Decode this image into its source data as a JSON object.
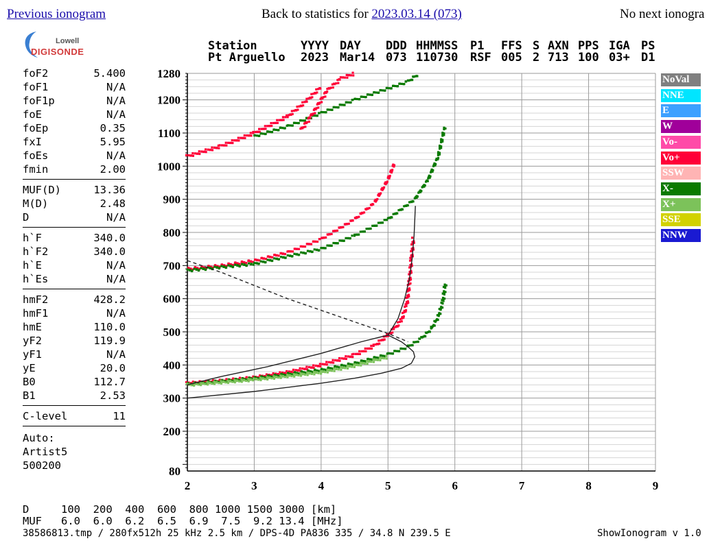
{
  "nav": {
    "prev_label": "Previous ionogram",
    "back_prefix": "Back to statistics for ",
    "back_link": "2023.03.14 (073)",
    "next_label": "No next ionogra"
  },
  "logo": {
    "top": "Lowell",
    "bottom": "DIGISONDE"
  },
  "header": {
    "row1": [
      "Station",
      "YYYY",
      "DAY",
      "DDD",
      "HHMMSS",
      "P1",
      "FFS",
      "S",
      "AXN",
      "PPS",
      "IGA",
      "PS"
    ],
    "row2": [
      "Pt Arguello",
      "2023",
      "Mar14",
      "073",
      "110730",
      "RSF",
      "005",
      "2",
      "713",
      "100",
      "03+",
      "D1"
    ]
  },
  "params": [
    {
      "name": "foF2",
      "value": "5.400"
    },
    {
      "name": "foF1",
      "value": "N/A"
    },
    {
      "name": "foF1p",
      "value": "N/A"
    },
    {
      "name": "foE",
      "value": "N/A"
    },
    {
      "name": "foEp",
      "value": "0.35"
    },
    {
      "name": "fxI",
      "value": "5.95"
    },
    {
      "name": "foEs",
      "value": "N/A"
    },
    {
      "name": "fmin",
      "value": "2.00"
    },
    {
      "name": "MUF(D)",
      "value": "13.36"
    },
    {
      "name": "M(D)",
      "value": "2.48"
    },
    {
      "name": "D",
      "value": "N/A"
    },
    {
      "name": "h`F",
      "value": "340.0"
    },
    {
      "name": "h`F2",
      "value": "340.0"
    },
    {
      "name": "h`E",
      "value": "N/A"
    },
    {
      "name": "h`Es",
      "value": "N/A"
    },
    {
      "name": "hmF2",
      "value": "428.2"
    },
    {
      "name": "hmF1",
      "value": "N/A"
    },
    {
      "name": "hmE",
      "value": "110.0"
    },
    {
      "name": "yF2",
      "value": "119.9"
    },
    {
      "name": "yF1",
      "value": "N/A"
    },
    {
      "name": "yE",
      "value": "20.0"
    },
    {
      "name": "B0",
      "value": "112.7"
    },
    {
      "name": "B1",
      "value": "2.53"
    },
    {
      "name": "C-level",
      "value": "11"
    }
  ],
  "auto": {
    "label": "Auto:",
    "artist": "Artist5",
    "code": "500200"
  },
  "legend": [
    {
      "label": "NoVal",
      "color": "#808080"
    },
    {
      "label": "NNE",
      "color": "#00e5ff"
    },
    {
      "label": "E",
      "color": "#3ca0ff"
    },
    {
      "label": "W",
      "color": "#a0009a"
    },
    {
      "label": "Vo-",
      "color": "#ff4aa8"
    },
    {
      "label": "Vo+",
      "color": "#ff0038"
    },
    {
      "label": "SSW",
      "color": "#ffb4b4"
    },
    {
      "label": "X-",
      "color": "#0a7a00"
    },
    {
      "label": "X+",
      "color": "#7cc25a"
    },
    {
      "label": "SSE",
      "color": "#d2d200"
    },
    {
      "label": "NNW",
      "color": "#1a1ad2"
    }
  ],
  "footer": {
    "d_row": "D     100  200  400  600  800 1000 1500 3000 [km]",
    "muf_row": "MUF   6.0  6.0  6.2  6.5  6.9  7.5  9.2 13.4 [MHz]",
    "file_line": "38586813.tmp / 280fx512h 25 kHz 2.5 km / DPS-4D PA836 335 / 34.8 N 239.5 E",
    "version": "ShowIonogram v 1.0"
  },
  "chart_data": {
    "type": "scatter",
    "xlabel": "",
    "ylabel": "",
    "xlim": [
      2,
      9
    ],
    "ylim": [
      80,
      1280
    ],
    "x_ticks": [
      2,
      3,
      4,
      5,
      6,
      7,
      8,
      9
    ],
    "y_ticks": [
      80,
      200,
      300,
      400,
      500,
      600,
      700,
      800,
      900,
      1000,
      1100,
      1200,
      1280
    ],
    "grid": true,
    "legend_position": "right",
    "series": [
      {
        "color": "#ff0038",
        "x": [
          2.0,
          2.5,
          3.0,
          3.5,
          4.0,
          4.5,
          4.8,
          5.0,
          5.1,
          5.2,
          5.28,
          5.32,
          5.35,
          5.38
        ],
        "y": [
          345,
          352,
          362,
          378,
          400,
          430,
          458,
          490,
          510,
          535,
          580,
          650,
          720,
          785
        ]
      },
      {
        "color": "#0a7a00",
        "x": [
          2.0,
          3.0,
          4.0,
          4.5,
          5.0,
          5.3,
          5.5,
          5.65,
          5.75,
          5.82,
          5.86
        ],
        "y": [
          342,
          360,
          385,
          405,
          432,
          455,
          480,
          510,
          545,
          590,
          650
        ]
      },
      {
        "color": "#7cc25a",
        "x": [
          2.0,
          3.0,
          4.0,
          4.5,
          5.0
        ],
        "y": [
          340,
          356,
          378,
          398,
          425
        ]
      },
      {
        "color": "#ff0038",
        "x": [
          2.0,
          2.5,
          3.0,
          3.5,
          4.0,
          4.5,
          4.8,
          5.0,
          5.1
        ],
        "y": [
          690,
          700,
          715,
          740,
          780,
          840,
          890,
          960,
          1010
        ]
      },
      {
        "color": "#0a7a00",
        "x": [
          2.0,
          3.0,
          4.0,
          4.5,
          5.0,
          5.4,
          5.6,
          5.75,
          5.85
        ],
        "y": [
          685,
          705,
          750,
          790,
          840,
          900,
          960,
          1030,
          1120
        ]
      },
      {
        "color": "#ff0038",
        "x": [
          2.0,
          2.5,
          3.0,
          3.5,
          3.8,
          4.0
        ],
        "y": [
          1030,
          1060,
          1100,
          1150,
          1200,
          1240
        ]
      },
      {
        "color": "#0a7a00",
        "x": [
          3.0,
          3.5,
          4.0,
          4.5,
          5.3,
          5.45
        ],
        "y": [
          1090,
          1120,
          1160,
          1200,
          1255,
          1278
        ]
      },
      {
        "color": "#ff0038",
        "x": [
          3.7,
          3.85,
          4.0,
          4.1,
          4.3,
          4.5
        ],
        "y": [
          1110,
          1150,
          1200,
          1230,
          1265,
          1280
        ]
      }
    ],
    "profiles": [
      {
        "style": "solid",
        "x": [
          2.0,
          3.0,
          4.0,
          4.5,
          4.9,
          5.2,
          5.35,
          5.4,
          5.38,
          5.3,
          5.2,
          5.0,
          4.6,
          4.0,
          3.2,
          2.5,
          2.0
        ],
        "y": [
          300,
          320,
          345,
          360,
          375,
          390,
          405,
          425,
          440,
          455,
          470,
          490,
          470,
          435,
          395,
          365,
          340
        ]
      },
      {
        "style": "solid",
        "x": [
          5.0,
          5.15,
          5.25,
          5.32,
          5.36,
          5.39,
          5.41
        ],
        "y": [
          490,
          540,
          600,
          660,
          720,
          790,
          880
        ]
      },
      {
        "style": "dashed",
        "x": [
          2.0,
          2.5,
          3.0,
          3.5,
          4.0,
          4.5,
          5.0,
          5.3
        ],
        "y": [
          715,
          680,
          640,
          600,
          565,
          530,
          495,
          470
        ]
      }
    ]
  }
}
